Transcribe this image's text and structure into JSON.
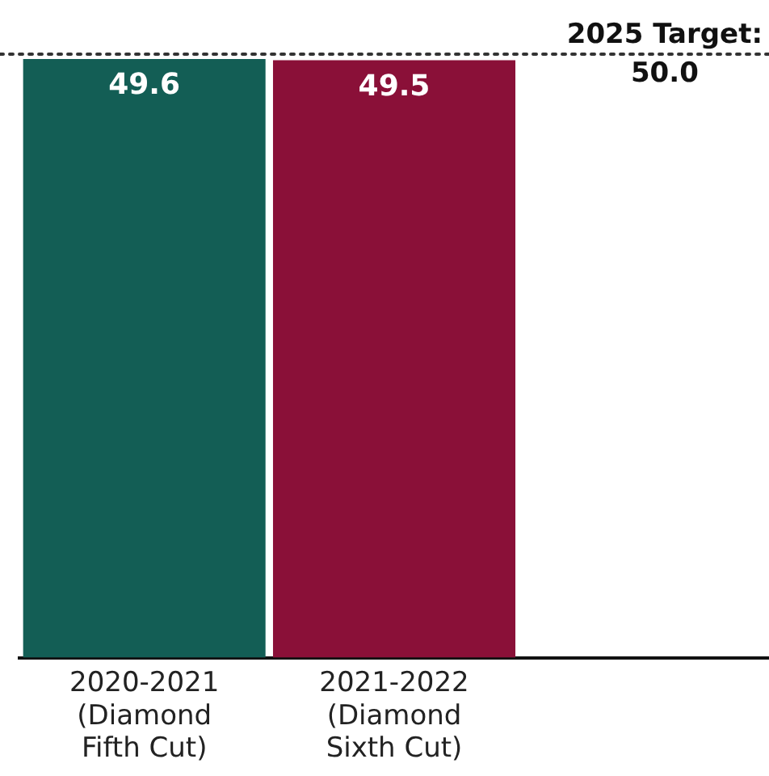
{
  "chart_data": {
    "type": "bar",
    "categories": [
      "2020-2021\n(Diamond\nFifth Cut)",
      "2021-2022\n(Diamond\nSixth Cut)",
      null
    ],
    "values": [
      49.6,
      49.5,
      null
    ],
    "colors": [
      "#135e55",
      "#8a1038",
      "#ffffff"
    ],
    "data_labels": true,
    "ref_lines": [
      {
        "axis": "y",
        "value": 50,
        "label": "2025 Target:",
        "color": "#333333",
        "line_style": "dotted"
      }
    ],
    "annotations": [
      "50.0"
    ],
    "grid": false,
    "legend": false
  }
}
